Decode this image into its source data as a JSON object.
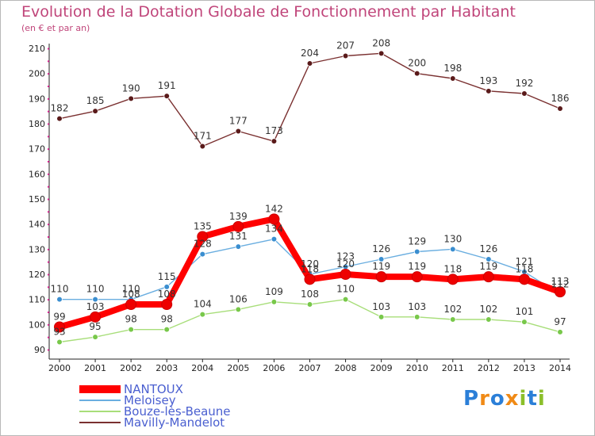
{
  "chart_data": {
    "type": "line",
    "title": "Evolution de la Dotation Globale de Fonctionnement par Habitant",
    "subtitle": "(en € et par an)",
    "xlabel": "",
    "ylabel": "",
    "x": [
      "2000",
      "2001",
      "2002",
      "2003",
      "2004",
      "2005",
      "2006",
      "2007",
      "2008",
      "2009",
      "2010",
      "2011",
      "2012",
      "2013",
      "2014"
    ],
    "yticks": [
      90,
      100,
      110,
      120,
      130,
      140,
      150,
      160,
      170,
      180,
      190,
      200,
      210
    ],
    "ylim": [
      90,
      210
    ],
    "grid": false,
    "legend_position": "bottom-left",
    "series": [
      {
        "name": "NANTOUX",
        "color": "#ff0000",
        "point_color": "#ee0000",
        "values": [
          99,
          103,
          108,
          108,
          135,
          139,
          142,
          118,
          120,
          119,
          119,
          118,
          119,
          118,
          113
        ]
      },
      {
        "name": "Meloisey",
        "color": "#6aaee0",
        "point_color": "#3a8ed0",
        "values": [
          110,
          110,
          110,
          115,
          128,
          131,
          134,
          120,
          123,
          126,
          129,
          130,
          126,
          121,
          112
        ]
      },
      {
        "name": "Bouze-lès-Beaune",
        "color": "#a8de7a",
        "point_color": "#78c84a",
        "values": [
          93,
          95,
          98,
          98,
          104,
          106,
          109,
          108,
          110,
          103,
          103,
          102,
          102,
          101,
          97
        ]
      },
      {
        "name": "Mavilly-Mandelot",
        "color": "#7a3030",
        "point_color": "#5a1a1a",
        "values": [
          182,
          185,
          190,
          191,
          171,
          177,
          173,
          204,
          207,
          208,
          200,
          198,
          193,
          192,
          186
        ]
      }
    ]
  },
  "brand": {
    "letters": [
      "P",
      "r",
      "o",
      "x",
      "i",
      "t",
      "i"
    ]
  }
}
